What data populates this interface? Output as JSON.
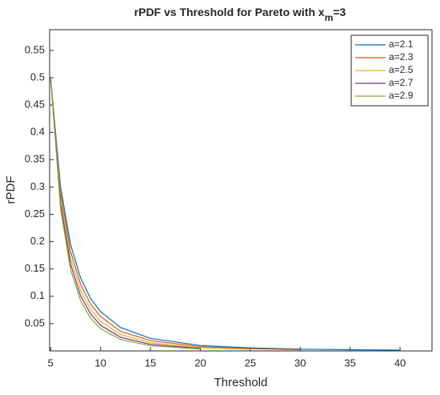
{
  "chart_data": {
    "type": "line",
    "title": [
      "rPDF vs Threshold for Pareto with x",
      "m",
      "=3"
    ],
    "x_label": "Threshold",
    "y_label": "rPDF",
    "x": [
      5,
      6,
      7,
      8,
      9,
      10,
      12,
      15,
      20,
      25,
      30,
      35,
      40
    ],
    "series": [
      {
        "name": "a=2.1",
        "color": "#0072bd",
        "values": [
          0.5,
          0.3,
          0.195,
          0.134,
          0.096,
          0.072,
          0.043,
          0.023,
          0.01,
          0.0055,
          0.0033,
          0.0022,
          0.0015
        ]
      },
      {
        "name": "a=2.3",
        "color": "#d95319",
        "values": [
          0.5,
          0.289,
          0.182,
          0.122,
          0.086,
          0.063,
          0.036,
          0.019,
          0.0078,
          0.004,
          0.0023,
          null,
          null
        ]
      },
      {
        "name": "a=2.5",
        "color": "#edb120",
        "values": [
          0.5,
          0.279,
          0.17,
          0.111,
          0.076,
          0.054,
          0.03,
          0.015,
          0.0059,
          0.0029,
          null,
          null,
          null
        ]
      },
      {
        "name": "a=2.7",
        "color": "#7e2f8e",
        "values": [
          0.5,
          0.269,
          0.159,
          0.101,
          0.068,
          0.047,
          0.025,
          0.012,
          0.0045,
          null,
          null,
          null,
          null
        ]
      },
      {
        "name": "a=2.9",
        "color": "#77ac30",
        "values": [
          0.5,
          0.26,
          0.149,
          0.092,
          0.06,
          0.041,
          0.021,
          0.0096,
          0.0034,
          null,
          null,
          null,
          null
        ]
      }
    ],
    "xlim": [
      4.9,
      43.2
    ],
    "ylim": [
      0,
      0.588
    ],
    "xticks": [
      5,
      10,
      15,
      20,
      25,
      30,
      35,
      40
    ],
    "yticks": [
      0.05,
      0.1,
      0.15,
      0.2,
      0.25,
      0.3,
      0.35,
      0.4,
      0.45,
      0.5,
      0.55
    ],
    "legend": "top-right"
  }
}
